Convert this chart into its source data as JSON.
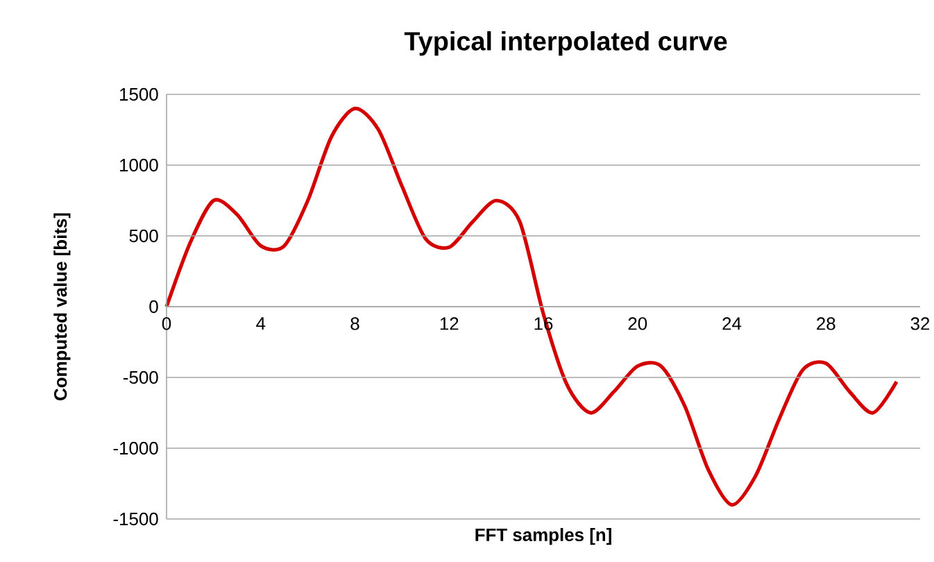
{
  "chart_data": {
    "type": "line",
    "title": "Typical interpolated curve",
    "xlabel": "FFT samples [n]",
    "ylabel": "Computed value [bits]",
    "x": [
      0,
      1,
      2,
      3,
      4,
      5,
      6,
      7,
      8,
      9,
      10,
      11,
      12,
      13,
      14,
      15,
      16,
      17,
      18,
      19,
      20,
      21,
      22,
      23,
      24,
      25,
      26,
      27,
      28,
      29,
      30,
      31
    ],
    "series": [
      {
        "color": "#d40000",
        "values": [
          0,
          450,
          750,
          650,
          430,
          430,
          750,
          1200,
          1400,
          1250,
          850,
          480,
          420,
          600,
          750,
          600,
          -50,
          -550,
          -750,
          -600,
          -420,
          -420,
          -700,
          -1150,
          -1400,
          -1200,
          -800,
          -450,
          -400,
          -600,
          -750,
          -530
        ]
      }
    ],
    "xlim": [
      0,
      32
    ],
    "ylim": [
      -1500,
      1500
    ],
    "xticks": [
      0,
      4,
      8,
      12,
      16,
      20,
      24,
      28,
      32
    ],
    "yticks": [
      -1500,
      -1000,
      -500,
      0,
      500,
      1000,
      1500
    ],
    "grid": "y",
    "marker": "none",
    "line_style": "solid"
  }
}
